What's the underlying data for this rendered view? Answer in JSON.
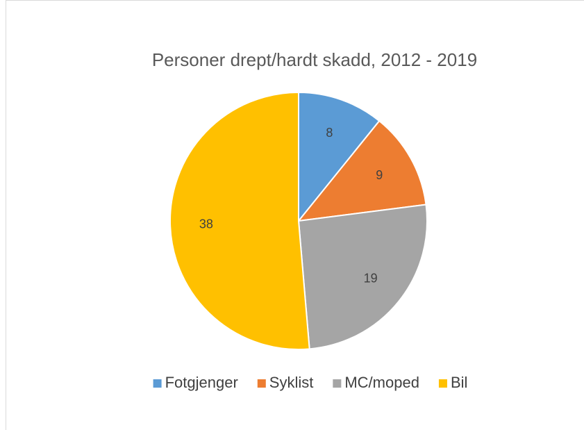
{
  "chart_data": {
    "type": "pie",
    "title": "Personer drept/hardt skadd, 2012 - 2019",
    "categories": [
      "Fotgjenger",
      "Syklist",
      "MC/moped",
      "Bil"
    ],
    "values": [
      8,
      9,
      19,
      38
    ],
    "colors": [
      "#5b9bd5",
      "#ed7d31",
      "#a5a5a5",
      "#ffc000"
    ],
    "legend": "bottom"
  }
}
